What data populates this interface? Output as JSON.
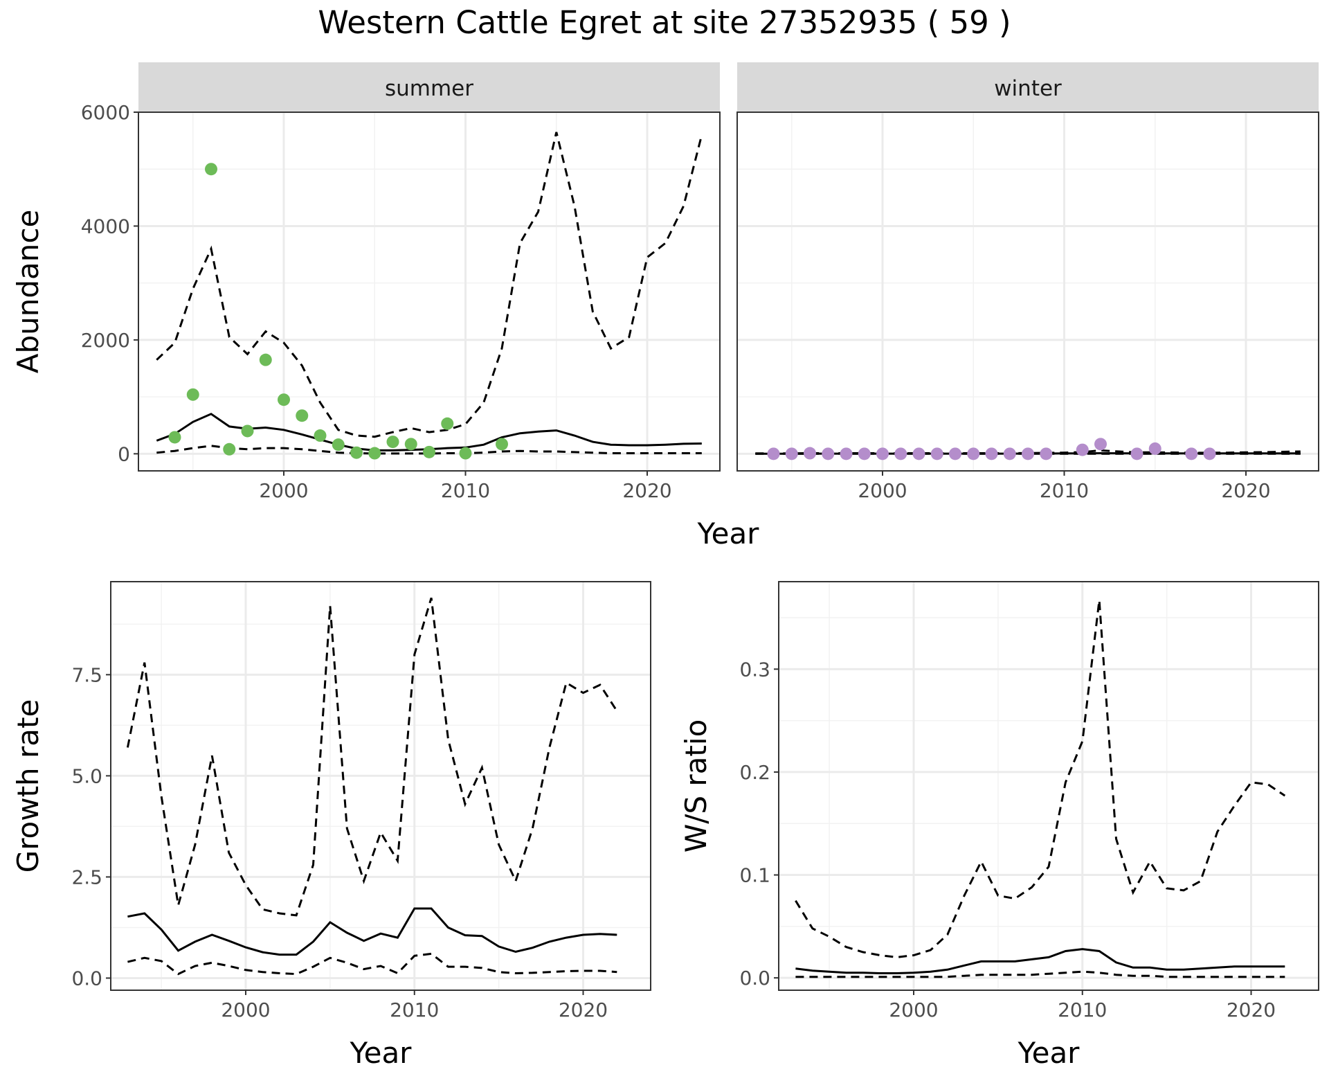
{
  "title": "Western Cattle Egret at site 27352935 ( 59 )",
  "colors": {
    "summer_points": "#6dbb58",
    "winter_points": "#b48dcb",
    "lines": "#000000",
    "strip_fill": "#d9d9d9",
    "grid": "#ebebeb"
  },
  "chart_data": [
    {
      "type": "line",
      "panel": "abundance",
      "facets": [
        "summer",
        "winter"
      ],
      "xlabel": "Year",
      "ylabel": "Abundance",
      "xlim": [
        1992,
        2024
      ],
      "ylim": [
        -300,
        6000
      ],
      "xticks": [
        2000,
        2010,
        2020
      ],
      "yticks": [
        0,
        2000,
        4000,
        6000
      ],
      "x": [
        1993,
        1994,
        1995,
        1996,
        1997,
        1998,
        1999,
        2000,
        2001,
        2002,
        2003,
        2004,
        2005,
        2006,
        2007,
        2008,
        2009,
        2010,
        2011,
        2012,
        2013,
        2014,
        2015,
        2016,
        2017,
        2018,
        2019,
        2020,
        2021,
        2022,
        2023
      ],
      "series": [
        {
          "facet": "summer",
          "estimate": [
            230,
            350,
            560,
            700,
            480,
            440,
            460,
            420,
            340,
            250,
            160,
            90,
            60,
            60,
            70,
            80,
            100,
            110,
            160,
            290,
            360,
            390,
            410,
            320,
            210,
            160,
            150,
            150,
            160,
            175,
            180
          ],
          "lower": [
            20,
            50,
            100,
            140,
            100,
            80,
            100,
            100,
            80,
            50,
            20,
            10,
            5,
            5,
            5,
            5,
            10,
            10,
            20,
            40,
            50,
            40,
            40,
            30,
            20,
            10,
            10,
            10,
            10,
            10,
            10
          ],
          "upper": [
            1650,
            1950,
            2900,
            3600,
            2050,
            1750,
            2150,
            1950,
            1550,
            900,
            420,
            320,
            300,
            380,
            450,
            380,
            420,
            520,
            900,
            1850,
            3700,
            4250,
            5650,
            4350,
            2500,
            1850,
            2050,
            3450,
            3700,
            4350,
            5600
          ],
          "points": [
            [
              1994,
              290
            ],
            [
              1995,
              1040
            ],
            [
              1996,
              5000
            ],
            [
              1997,
              80
            ],
            [
              1998,
              400
            ],
            [
              1999,
              1650
            ],
            [
              2000,
              950
            ],
            [
              2001,
              670
            ],
            [
              2002,
              320
            ],
            [
              2003,
              160
            ],
            [
              2004,
              20
            ],
            [
              2005,
              10
            ],
            [
              2006,
              210
            ],
            [
              2007,
              170
            ],
            [
              2008,
              30
            ],
            [
              2009,
              530
            ],
            [
              2010,
              10
            ],
            [
              2012,
              170
            ]
          ]
        },
        {
          "facet": "winter",
          "estimate": [
            2,
            2,
            2,
            3,
            3,
            3,
            3,
            3,
            3,
            3,
            3,
            3,
            3,
            3,
            3,
            4,
            5,
            6,
            8,
            10,
            9,
            8,
            8,
            7,
            6,
            6,
            6,
            6,
            6,
            6,
            6
          ],
          "lower": [
            0,
            0,
            0,
            0,
            0,
            0,
            0,
            0,
            0,
            0,
            0,
            0,
            0,
            0,
            0,
            0,
            0,
            0,
            0,
            0,
            0,
            0,
            0,
            0,
            0,
            0,
            0,
            0,
            0,
            0,
            0
          ],
          "upper": [
            8,
            8,
            8,
            10,
            10,
            10,
            10,
            10,
            10,
            10,
            10,
            10,
            10,
            10,
            10,
            12,
            15,
            20,
            30,
            60,
            40,
            25,
            25,
            22,
            18,
            18,
            20,
            25,
            30,
            35,
            40
          ],
          "points": [
            [
              1994,
              0
            ],
            [
              1995,
              0
            ],
            [
              1996,
              10
            ],
            [
              1997,
              0
            ],
            [
              1998,
              0
            ],
            [
              1999,
              0
            ],
            [
              2000,
              0
            ],
            [
              2001,
              0
            ],
            [
              2002,
              0
            ],
            [
              2003,
              0
            ],
            [
              2004,
              0
            ],
            [
              2005,
              0
            ],
            [
              2006,
              0
            ],
            [
              2007,
              0
            ],
            [
              2008,
              0
            ],
            [
              2009,
              0
            ],
            [
              2011,
              70
            ],
            [
              2012,
              170
            ],
            [
              2014,
              0
            ],
            [
              2015,
              90
            ],
            [
              2017,
              0
            ],
            [
              2018,
              0
            ]
          ]
        }
      ]
    },
    {
      "type": "line",
      "panel": "growth",
      "xlabel": "Year",
      "ylabel": "Growth rate",
      "xlim": [
        1992,
        2024
      ],
      "ylim": [
        -0.3,
        9.8
      ],
      "xticks": [
        2000,
        2010,
        2020
      ],
      "yticks": [
        0,
        2.5,
        5,
        7.5
      ],
      "ytick_labels": [
        "0.0",
        "2.5",
        "5.0",
        "7.5"
      ],
      "x": [
        1993,
        1994,
        1995,
        1996,
        1997,
        1998,
        1999,
        2000,
        2001,
        2002,
        2003,
        2004,
        2005,
        2006,
        2007,
        2008,
        2009,
        2010,
        2011,
        2012,
        2013,
        2014,
        2015,
        2016,
        2017,
        2018,
        2019,
        2020,
        2021,
        2022
      ],
      "estimate": [
        1.52,
        1.6,
        1.2,
        0.68,
        0.9,
        1.07,
        0.92,
        0.76,
        0.64,
        0.58,
        0.58,
        0.9,
        1.38,
        1.12,
        0.92,
        1.1,
        1.0,
        1.72,
        1.72,
        1.25,
        1.06,
        1.04,
        0.78,
        0.65,
        0.75,
        0.9,
        1.0,
        1.07,
        1.09,
        1.07
      ],
      "lower": [
        0.4,
        0.5,
        0.42,
        0.1,
        0.3,
        0.38,
        0.3,
        0.2,
        0.15,
        0.12,
        0.1,
        0.28,
        0.5,
        0.38,
        0.22,
        0.3,
        0.12,
        0.55,
        0.6,
        0.28,
        0.28,
        0.25,
        0.15,
        0.12,
        0.13,
        0.15,
        0.17,
        0.18,
        0.18,
        0.15
      ],
      "upper": [
        5.7,
        7.8,
        4.5,
        1.8,
        3.3,
        5.5,
        3.1,
        2.3,
        1.7,
        1.6,
        1.55,
        2.8,
        9.2,
        3.7,
        2.4,
        3.6,
        2.9,
        8.0,
        9.4,
        5.9,
        4.3,
        5.2,
        3.3,
        2.4,
        3.7,
        5.7,
        7.3,
        7.05,
        7.25,
        6.6
      ]
    },
    {
      "type": "line",
      "panel": "ratio",
      "xlabel": "Year",
      "ylabel": "W/S ratio",
      "xlim": [
        1992,
        2024
      ],
      "ylim": [
        -0.012,
        0.385
      ],
      "xticks": [
        2000,
        2010,
        2020
      ],
      "yticks": [
        0,
        0.1,
        0.2,
        0.3
      ],
      "ytick_labels": [
        "0.0",
        "0.1",
        "0.2",
        "0.3"
      ],
      "x": [
        1993,
        1994,
        1995,
        1996,
        1997,
        1998,
        1999,
        2000,
        2001,
        2002,
        2003,
        2004,
        2005,
        2006,
        2007,
        2008,
        2009,
        2010,
        2011,
        2012,
        2013,
        2014,
        2015,
        2016,
        2017,
        2018,
        2019,
        2020,
        2021,
        2022
      ],
      "estimate": [
        0.009,
        0.007,
        0.006,
        0.005,
        0.005,
        0.0045,
        0.0045,
        0.005,
        0.006,
        0.008,
        0.012,
        0.016,
        0.016,
        0.016,
        0.018,
        0.02,
        0.026,
        0.028,
        0.026,
        0.015,
        0.01,
        0.01,
        0.008,
        0.008,
        0.009,
        0.01,
        0.011,
        0.011,
        0.011,
        0.011
      ],
      "lower": [
        0.001,
        0.001,
        0.001,
        0.001,
        0.001,
        0.001,
        0.001,
        0.001,
        0.001,
        0.001,
        0.002,
        0.003,
        0.003,
        0.003,
        0.003,
        0.004,
        0.005,
        0.006,
        0.005,
        0.003,
        0.002,
        0.002,
        0.001,
        0.001,
        0.001,
        0.001,
        0.001,
        0.001,
        0.001,
        0.001
      ],
      "upper": [
        0.075,
        0.048,
        0.04,
        0.03,
        0.025,
        0.022,
        0.02,
        0.022,
        0.027,
        0.042,
        0.08,
        0.113,
        0.08,
        0.077,
        0.088,
        0.108,
        0.19,
        0.23,
        0.367,
        0.135,
        0.083,
        0.113,
        0.087,
        0.085,
        0.094,
        0.142,
        0.167,
        0.19,
        0.188,
        0.177
      ]
    }
  ]
}
